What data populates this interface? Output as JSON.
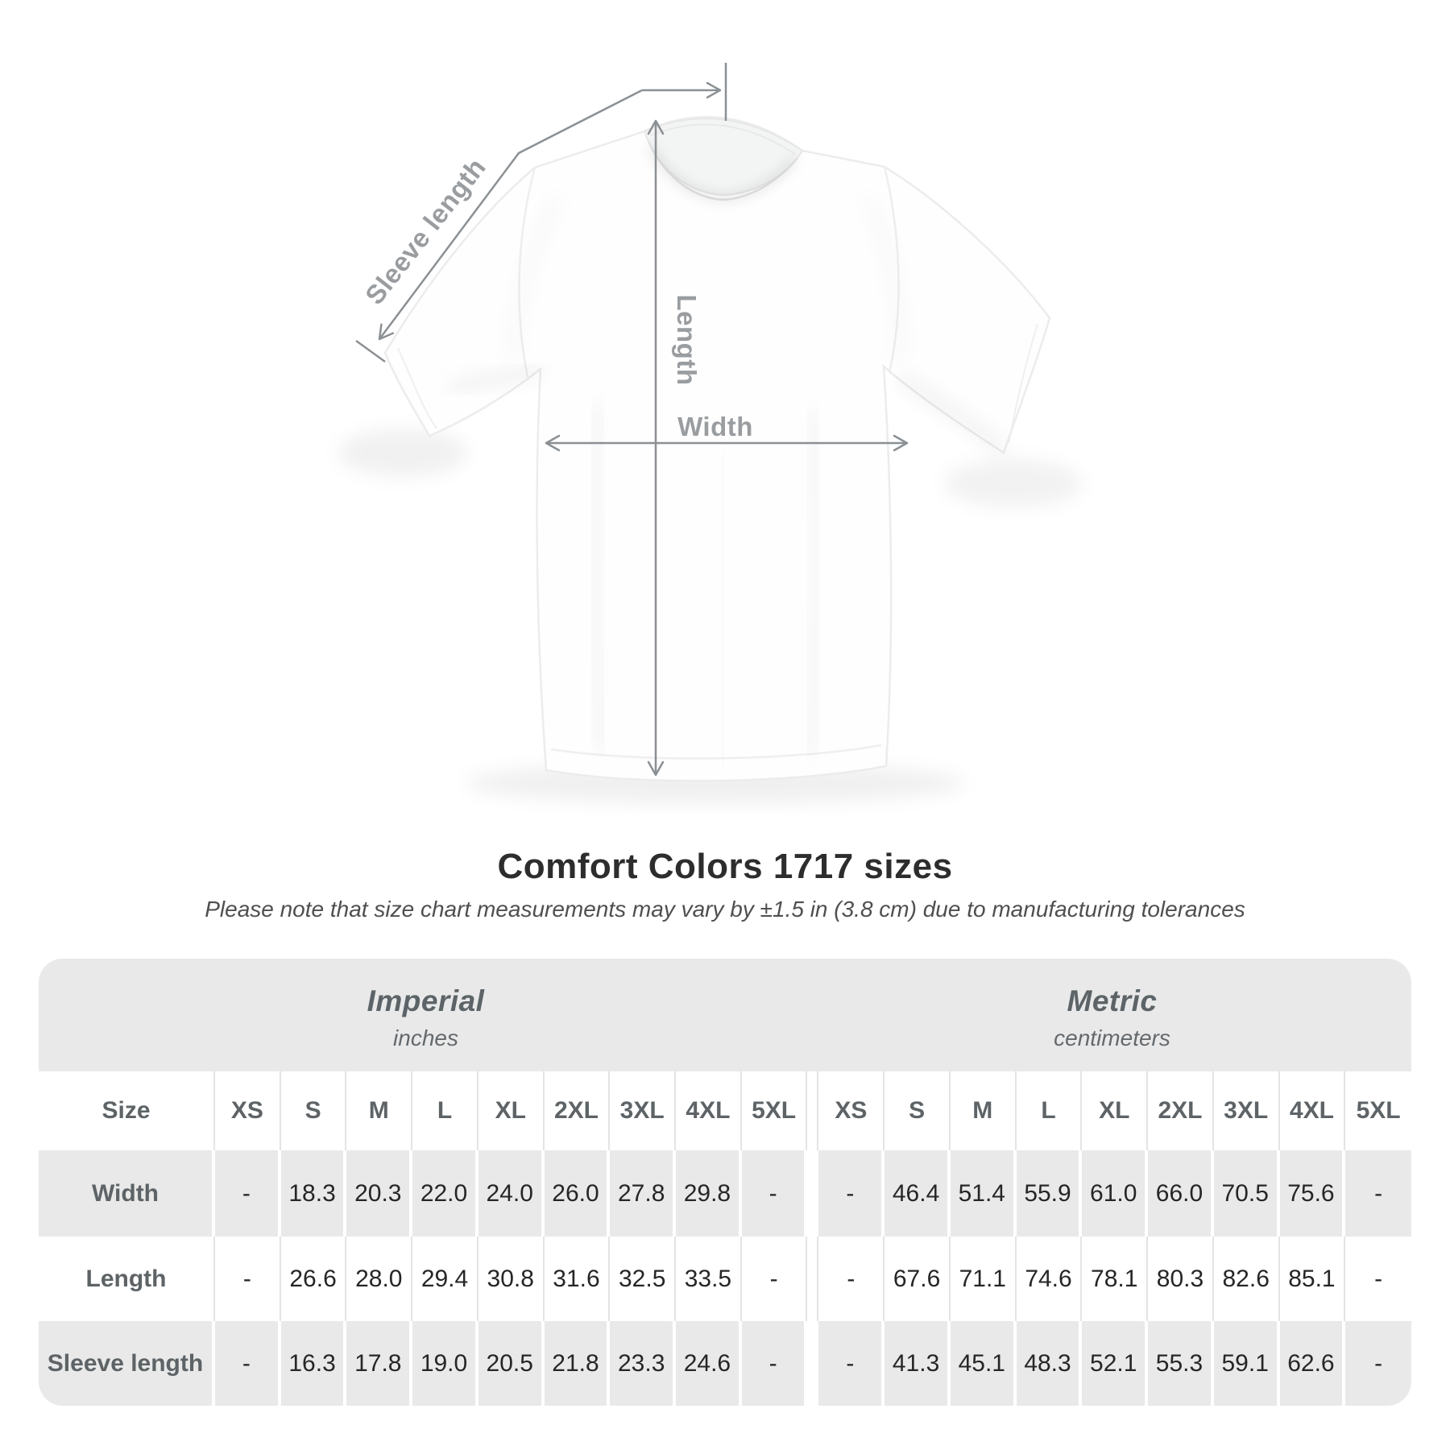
{
  "diagram": {
    "labels": {
      "sleeve_length": "Sleeve length",
      "length": "Length",
      "width": "Width"
    }
  },
  "heading": {
    "title": "Comfort Colors 1717 sizes",
    "subtitle": "Please note that size chart measurements may vary by ±1.5 in (3.8 cm) due to manufacturing tolerances"
  },
  "table": {
    "unit_groups": [
      {
        "label": "Imperial",
        "sublabel": "inches"
      },
      {
        "label": "Metric",
        "sublabel": "centimeters"
      }
    ],
    "size_label": "Size",
    "sizes": [
      "XS",
      "S",
      "M",
      "L",
      "XL",
      "2XL",
      "3XL",
      "4XL",
      "5XL"
    ],
    "rows": [
      {
        "label": "Width",
        "imperial": [
          "-",
          "18.3",
          "20.3",
          "22.0",
          "24.0",
          "26.0",
          "27.8",
          "29.8",
          "-"
        ],
        "metric": [
          "-",
          "46.4",
          "51.4",
          "55.9",
          "61.0",
          "66.0",
          "70.5",
          "75.6",
          "-"
        ]
      },
      {
        "label": "Length",
        "imperial": [
          "-",
          "26.6",
          "28.0",
          "29.4",
          "30.8",
          "31.6",
          "32.5",
          "33.5",
          "-"
        ],
        "metric": [
          "-",
          "67.6",
          "71.1",
          "74.6",
          "78.1",
          "80.3",
          "82.6",
          "85.1",
          "-"
        ]
      },
      {
        "label": "Sleeve length",
        "imperial": [
          "-",
          "16.3",
          "17.8",
          "19.0",
          "20.5",
          "21.8",
          "23.3",
          "24.6",
          "-"
        ],
        "metric": [
          "-",
          "41.3",
          "45.1",
          "48.3",
          "52.1",
          "55.3",
          "59.1",
          "62.6",
          "-"
        ]
      }
    ]
  },
  "colors": {
    "table_band_gray": "#e9e9e9",
    "header_text_gray": "#5d6366",
    "annotation_gray": "#9a9da0",
    "measure_line_gray": "#8b9094",
    "value_dark": "#262626"
  }
}
